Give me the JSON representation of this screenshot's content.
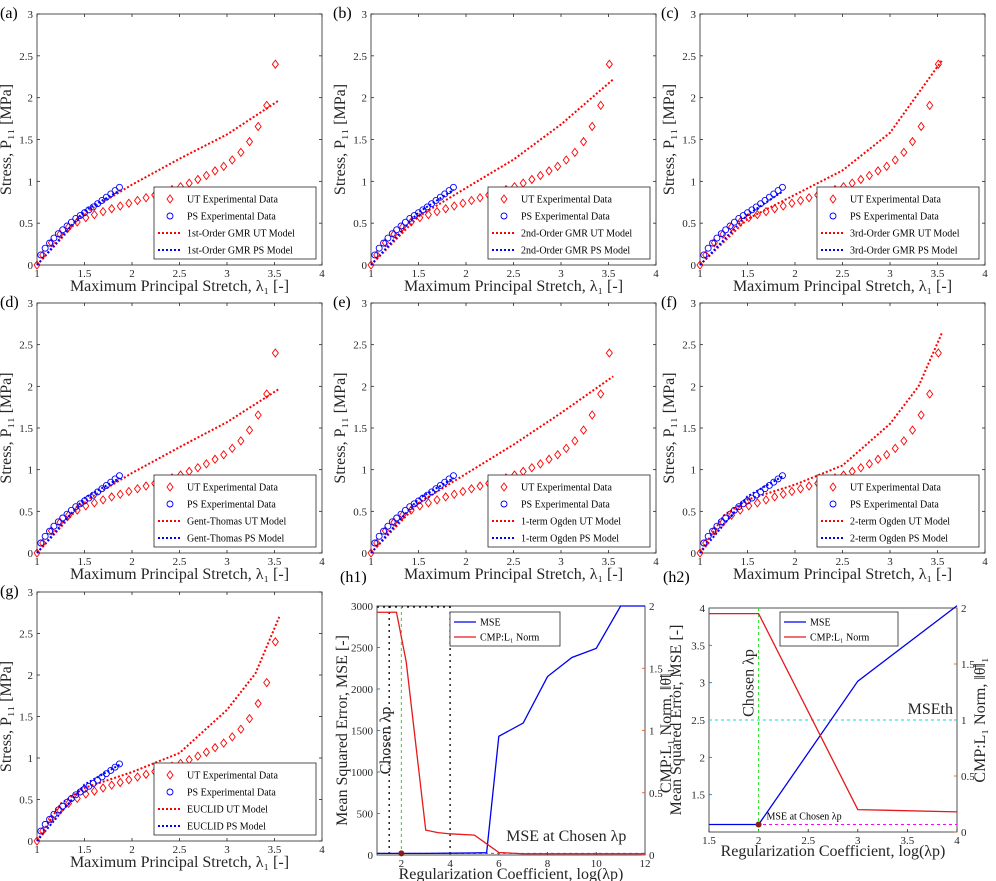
{
  "colors": {
    "ut": "#ff0000",
    "ps": "#0000ff",
    "mse": "#0000ee",
    "l1": "#e41a1c",
    "chosen": "#22dd22",
    "mse_at": "#ff00ff",
    "mse_th": "#00dddd",
    "left_axis": "#0072bd",
    "right_axis": "#d95319"
  },
  "chart_data": [
    {
      "label": "(a)",
      "type": "scatter",
      "xlabel": "Maximum Principal Stretch, λ₁ [-]",
      "ylabel": "Stress, P₁₁ [MPa]",
      "xlim": [
        1,
        4
      ],
      "ylim": [
        0,
        3
      ],
      "xticks": [
        "1",
        "1.5",
        "2",
        "2.5",
        "3",
        "3.5",
        "4"
      ],
      "yticks": [
        "0",
        "0.5",
        "1",
        "1.5",
        "2",
        "2.5",
        "3"
      ],
      "legend": [
        "UT Experimental Data",
        "PS Experimental Data",
        "1st-Order GMR UT Model",
        "1st-Order GMR PS Model"
      ],
      "legend_position": "bottom-right",
      "ut_model": [
        [
          1,
          0
        ],
        [
          1.5,
          0.62
        ],
        [
          2,
          0.96
        ],
        [
          2.5,
          1.27
        ],
        [
          3,
          1.56
        ],
        [
          3.55,
          1.97
        ]
      ],
      "ps_model": [
        [
          1,
          0
        ],
        [
          1.5,
          0.65
        ],
        [
          1.87,
          0.89
        ]
      ]
    },
    {
      "label": "(b)",
      "type": "scatter",
      "xlabel": "Maximum Principal Stretch, λ₁ [-]",
      "ylabel": "Stress, P₁₁ [MPa]",
      "xlim": [
        1,
        4
      ],
      "ylim": [
        0,
        3
      ],
      "xticks": [
        "1",
        "1.5",
        "2",
        "2.5",
        "3",
        "3.5",
        "4"
      ],
      "yticks": [
        "0",
        "0.5",
        "1",
        "1.5",
        "2",
        "2.5",
        "3"
      ],
      "legend": [
        "UT Experimental Data",
        "PS Experimental Data",
        "2nd-Order GMR UT Model",
        "2nd-Order GMR PS Model"
      ],
      "legend_position": "bottom-right",
      "ut_model": [
        [
          1,
          0
        ],
        [
          1.5,
          0.58
        ],
        [
          2,
          0.92
        ],
        [
          2.5,
          1.26
        ],
        [
          3,
          1.68
        ],
        [
          3.55,
          2.22
        ]
      ],
      "ps_model": [
        [
          1,
          0
        ],
        [
          1.5,
          0.63
        ],
        [
          1.87,
          0.9
        ]
      ]
    },
    {
      "label": "(c)",
      "type": "scatter",
      "xlabel": "Maximum Principal Stretch, λ₁ [-]",
      "ylabel": "Stress, P₁₁ [MPa]",
      "xlim": [
        1,
        4
      ],
      "ylim": [
        0,
        3
      ],
      "xticks": [
        "1",
        "1.5",
        "2",
        "2.5",
        "3",
        "3.5",
        "4"
      ],
      "yticks": [
        "0",
        "0.5",
        "1",
        "1.5",
        "2",
        "2.5",
        "3"
      ],
      "legend": [
        "UT Experimental Data",
        "PS Experimental Data",
        "3rd-Order GMR UT Model",
        "3rd-Order GMR PS Model"
      ],
      "legend_position": "bottom-right",
      "ut_model": [
        [
          1,
          0
        ],
        [
          1.5,
          0.55
        ],
        [
          2,
          0.84
        ],
        [
          2.5,
          1.13
        ],
        [
          3,
          1.58
        ],
        [
          3.55,
          2.45
        ]
      ],
      "ps_model": [
        [
          1,
          0
        ],
        [
          1.5,
          0.6
        ],
        [
          1.87,
          0.88
        ]
      ]
    },
    {
      "label": "(d)",
      "type": "scatter",
      "xlabel": "Maximum Principal Stretch, λ₁ [-]",
      "ylabel": "Stress, P₁₁ [MPa]",
      "xlim": [
        1,
        4
      ],
      "ylim": [
        0,
        3
      ],
      "xticks": [
        "1",
        "1.5",
        "2",
        "2.5",
        "3",
        "3.5",
        "4"
      ],
      "yticks": [
        "0",
        "0.5",
        "1",
        "1.5",
        "2",
        "2.5",
        "3"
      ],
      "legend": [
        "UT Experimental Data",
        "PS Experimental Data",
        "Gent-Thomas UT Model",
        "Gent-Thomas PS Model"
      ],
      "legend_position": "bottom-right",
      "ut_model": [
        [
          1,
          0
        ],
        [
          1.5,
          0.62
        ],
        [
          2,
          0.96
        ],
        [
          2.5,
          1.27
        ],
        [
          3,
          1.57
        ],
        [
          3.55,
          1.97
        ]
      ],
      "ps_model": [
        [
          1,
          0
        ],
        [
          1.5,
          0.66
        ],
        [
          1.87,
          0.9
        ]
      ]
    },
    {
      "label": "(e)",
      "type": "scatter",
      "xlabel": "Maximum Principal Stretch, λ₁ [-]",
      "ylabel": "Stress, P₁₁ [MPa]",
      "xlim": [
        1,
        4
      ],
      "ylim": [
        0,
        3
      ],
      "xticks": [
        "1",
        "1.5",
        "2",
        "2.5",
        "3",
        "3.5",
        "4"
      ],
      "yticks": [
        "0",
        "0.5",
        "1",
        "1.5",
        "2",
        "2.5",
        "3"
      ],
      "legend": [
        "UT Experimental Data",
        "PS Experimental Data",
        "1-term Ogden UT Model",
        "1-term Ogden PS Model"
      ],
      "legend_position": "bottom-right",
      "ut_model": [
        [
          1,
          0
        ],
        [
          1.5,
          0.6
        ],
        [
          2,
          0.95
        ],
        [
          2.5,
          1.3
        ],
        [
          3,
          1.68
        ],
        [
          3.55,
          2.12
        ]
      ],
      "ps_model": [
        [
          1,
          0
        ],
        [
          1.5,
          0.65
        ],
        [
          1.87,
          0.9
        ]
      ]
    },
    {
      "label": "(f)",
      "type": "scatter",
      "xlabel": "Maximum Principal Stretch, λ₁ [-]",
      "ylabel": "Stress, P₁₁ [MPa]",
      "xlim": [
        1,
        4
      ],
      "ylim": [
        0,
        3
      ],
      "xticks": [
        "1",
        "1.5",
        "2",
        "2.5",
        "3",
        "3.5",
        "4"
      ],
      "yticks": [
        "0",
        "0.5",
        "1",
        "1.5",
        "2",
        "2.5",
        "3"
      ],
      "legend": [
        "UT Experimental Data",
        "PS Experimental Data",
        "2-term Ogden UT Model",
        "2-term Ogden PS Model"
      ],
      "legend_position": "bottom-right",
      "ut_model": [
        [
          1,
          0
        ],
        [
          1.25,
          0.45
        ],
        [
          1.5,
          0.64
        ],
        [
          2,
          0.82
        ],
        [
          2.5,
          1.05
        ],
        [
          3,
          1.55
        ],
        [
          3.3,
          2.0
        ],
        [
          3.55,
          2.65
        ]
      ],
      "ps_model": [
        [
          1,
          0
        ],
        [
          1.5,
          0.68
        ],
        [
          1.87,
          0.92
        ]
      ]
    },
    {
      "label": "(g)",
      "type": "scatter",
      "xlabel": "Maximum Principal Stretch, λ₁ [-]",
      "ylabel": "Stress, P₁₁ [MPa]",
      "xlim": [
        1,
        4
      ],
      "ylim": [
        0,
        3
      ],
      "xticks": [
        "1",
        "1.5",
        "2",
        "2.5",
        "3",
        "3.5",
        "4"
      ],
      "yticks": [
        "0",
        "0.5",
        "1",
        "1.5",
        "2",
        "2.5",
        "3"
      ],
      "legend": [
        "UT Experimental Data",
        "PS Experimental Data",
        "EUCLID UT Model",
        "EUCLID PS Model"
      ],
      "legend_position": "bottom-right",
      "ut_model": [
        [
          1,
          0
        ],
        [
          1.25,
          0.45
        ],
        [
          1.5,
          0.64
        ],
        [
          2,
          0.83
        ],
        [
          2.5,
          1.06
        ],
        [
          3,
          1.58
        ],
        [
          3.3,
          2.02
        ],
        [
          3.55,
          2.7
        ]
      ],
      "ps_model": [
        [
          1,
          0
        ],
        [
          1.5,
          0.68
        ],
        [
          1.87,
          0.92
        ]
      ]
    },
    {
      "label": "(h1)",
      "type": "line",
      "xlabel": "Regularization Coefficient, log(λp)",
      "ylabel": "Mean Squared Error, MSE [-]",
      "ylabel_right": "CMP:L₁ Norm, ‖θ̄‖₁",
      "xlim": [
        1,
        12
      ],
      "ylim": [
        0,
        3000
      ],
      "ylim_right": [
        0,
        2
      ],
      "xticks": [
        "2",
        "4",
        "6",
        "8",
        "10",
        "12"
      ],
      "yticks": [
        "0",
        "500",
        "1000",
        "1500",
        "2000",
        "2500",
        "3000"
      ],
      "yticks_right": [
        "0",
        "0.5",
        "1",
        "1.5",
        "2"
      ],
      "series": [
        {
          "name": "MSE",
          "x": [
            1,
            2,
            3,
            4,
            5,
            5.5,
            6,
            7,
            8,
            9,
            10,
            11,
            12
          ],
          "values": [
            20,
            20,
            20,
            22,
            25,
            28,
            1430,
            1590,
            2150,
            2380,
            2490,
            3000,
            3000
          ]
        },
        {
          "name": "CMP:L₁ Norm",
          "x": [
            1,
            1.8,
            2.2,
            3,
            3.5,
            4,
            5,
            5.5,
            6,
            7,
            8,
            9,
            10,
            11,
            12
          ],
          "values": [
            1.95,
            1.95,
            1.55,
            0.2,
            0.18,
            0.17,
            0.16,
            0.09,
            0.02,
            0.01,
            0.01,
            0.01,
            0.01,
            0.01,
            0.01
          ]
        }
      ],
      "legend": [
        "MSE",
        "CMP:L₁ Norm"
      ],
      "annotations": {
        "chosen": "Chosen λp",
        "mse_at": "MSE at Chosen λp"
      },
      "chosen_x": 2,
      "vlines": [
        4
      ]
    },
    {
      "label": "(h2)",
      "type": "line",
      "xlabel": "Regularization Coefficient, log(λp)",
      "ylabel": "Mean Squared Error, MSE [-]",
      "ylabel_right": "CMP:L₁ Norm, ‖θ̄‖₁",
      "xlim": [
        1.5,
        4
      ],
      "ylim": [
        1,
        4
      ],
      "ylim_right": [
        0,
        2
      ],
      "xticks": [
        "1.5",
        "2",
        "2.5",
        "3",
        "3.5",
        "4"
      ],
      "yticks": [
        "1.5",
        "2",
        "2.5",
        "3",
        "3.5",
        "4"
      ],
      "yticks_right": [
        "0",
        "0.5",
        "1",
        "1.5",
        "2"
      ],
      "series": [
        {
          "name": "MSE",
          "x": [
            1.5,
            2,
            3,
            4
          ],
          "values": [
            1.1,
            1.1,
            3.02,
            4.03
          ]
        },
        {
          "name": "CMP:L₁ Norm",
          "x": [
            1.5,
            2,
            3,
            4
          ],
          "values": [
            1.95,
            1.95,
            0.2,
            0.18
          ]
        }
      ],
      "legend": [
        "MSE",
        "CMP:L₁ Norm"
      ],
      "annotations": {
        "chosen": "Chosen λp",
        "mse_at": "MSE at Chosen λp",
        "mse_th": "MSEth"
      },
      "chosen_x": 2,
      "mse_th": 2.5
    }
  ]
}
